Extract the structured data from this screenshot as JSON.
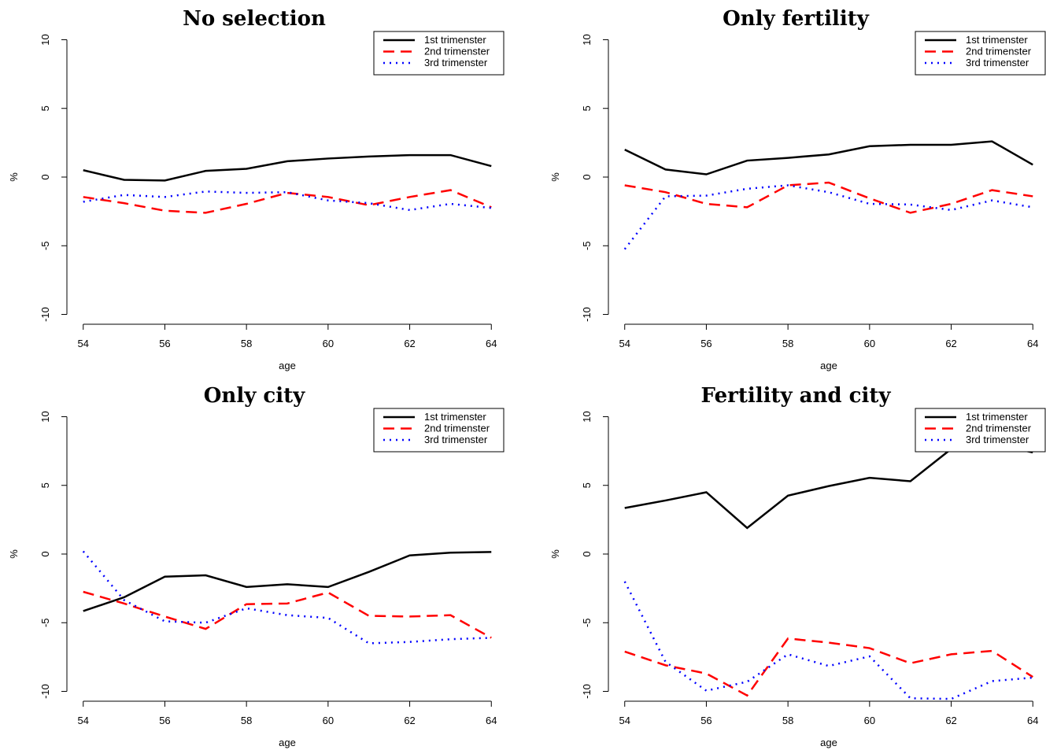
{
  "chart_data": [
    {
      "type": "line",
      "title": "No selection",
      "xlabel": "age",
      "ylabel": "%",
      "x": [
        54,
        55,
        56,
        57,
        58,
        59,
        60,
        61,
        62,
        63,
        64
      ],
      "xlim": [
        53.6,
        64.4
      ],
      "xticks": [
        54,
        56,
        58,
        60,
        62,
        64
      ],
      "ylim": [
        -10.6,
        10.6
      ],
      "yticks": [
        -10,
        -5,
        0,
        5,
        10
      ],
      "legend": "upper right",
      "series": [
        {
          "name": "1st trimenster",
          "color": "#000000",
          "linestyle": "solid",
          "values": [
            0.5,
            -0.2,
            -0.25,
            0.45,
            0.6,
            1.15,
            1.35,
            1.5,
            1.6,
            1.6,
            0.8
          ]
        },
        {
          "name": "2nd trimenster",
          "color": "#ff0000",
          "linestyle": "dashed",
          "values": [
            -1.45,
            -1.9,
            -2.45,
            -2.6,
            -1.95,
            -1.15,
            -1.45,
            -2.05,
            -1.45,
            -0.95,
            -2.2
          ]
        },
        {
          "name": "3rd trimenster",
          "color": "#0000ff",
          "linestyle": "dotted",
          "values": [
            -1.8,
            -1.3,
            -1.45,
            -1.05,
            -1.15,
            -1.1,
            -1.7,
            -1.9,
            -2.4,
            -1.95,
            -2.25
          ]
        }
      ]
    },
    {
      "type": "line",
      "title": "Only fertility",
      "xlabel": "age",
      "ylabel": "%",
      "x": [
        54,
        55,
        56,
        57,
        58,
        59,
        60,
        61,
        62,
        63,
        64
      ],
      "xlim": [
        53.6,
        64.4
      ],
      "xticks": [
        54,
        56,
        58,
        60,
        62,
        64
      ],
      "ylim": [
        -10.6,
        10.6
      ],
      "yticks": [
        -10,
        -5,
        0,
        5,
        10
      ],
      "legend": "upper right",
      "series": [
        {
          "name": "1st trimenster",
          "color": "#000000",
          "linestyle": "solid",
          "values": [
            2.0,
            0.55,
            0.2,
            1.2,
            1.4,
            1.65,
            2.25,
            2.35,
            2.35,
            2.6,
            0.9
          ]
        },
        {
          "name": "2nd trimenster",
          "color": "#ff0000",
          "linestyle": "dashed",
          "values": [
            -0.6,
            -1.1,
            -1.95,
            -2.2,
            -0.6,
            -0.4,
            -1.55,
            -2.6,
            -1.95,
            -0.95,
            -1.4
          ]
        },
        {
          "name": "3rd trimenster",
          "color": "#0000ff",
          "linestyle": "dotted",
          "values": [
            -5.25,
            -1.4,
            -1.35,
            -0.85,
            -0.6,
            -1.1,
            -1.95,
            -2.0,
            -2.4,
            -1.7,
            -2.2
          ]
        }
      ]
    },
    {
      "type": "line",
      "title": "Only city",
      "xlabel": "age",
      "ylabel": "%",
      "x": [
        54,
        55,
        56,
        57,
        58,
        59,
        60,
        61,
        62,
        63,
        64
      ],
      "xlim": [
        53.6,
        64.4
      ],
      "xticks": [
        54,
        56,
        58,
        60,
        62,
        64
      ],
      "ylim": [
        -10.6,
        10.6
      ],
      "yticks": [
        -10,
        -5,
        0,
        5,
        10
      ],
      "legend": "upper right",
      "series": [
        {
          "name": "1st trimenster",
          "color": "#000000",
          "linestyle": "solid",
          "values": [
            -4.15,
            -3.15,
            -1.65,
            -1.55,
            -2.4,
            -2.2,
            -2.4,
            -1.3,
            -0.1,
            0.1,
            0.15
          ]
        },
        {
          "name": "2nd trimenster",
          "color": "#ff0000",
          "linestyle": "dashed",
          "values": [
            -2.75,
            -3.6,
            -4.55,
            -5.45,
            -3.65,
            -3.6,
            -2.8,
            -4.5,
            -4.55,
            -4.45,
            -6.1
          ]
        },
        {
          "name": "3rd trimenster",
          "color": "#0000ff",
          "linestyle": "dotted",
          "values": [
            0.2,
            -3.35,
            -4.9,
            -5.0,
            -3.95,
            -4.45,
            -4.65,
            -6.5,
            -6.4,
            -6.2,
            -6.1
          ]
        }
      ]
    },
    {
      "type": "line",
      "title": "Fertility and city",
      "xlabel": "age",
      "ylabel": "%",
      "x": [
        54,
        55,
        56,
        57,
        58,
        59,
        60,
        61,
        62,
        63,
        64
      ],
      "xlim": [
        53.6,
        64.4
      ],
      "xticks": [
        54,
        56,
        58,
        60,
        62,
        64
      ],
      "ylim": [
        -10.6,
        10.6
      ],
      "yticks": [
        -10,
        -5,
        0,
        5,
        10
      ],
      "legend": "upper right",
      "series": [
        {
          "name": "1st trimenster",
          "color": "#000000",
          "linestyle": "solid",
          "values": [
            3.35,
            3.9,
            4.5,
            1.9,
            4.25,
            4.95,
            5.55,
            5.3,
            7.65,
            8.05,
            7.4
          ]
        },
        {
          "name": "2nd trimenster",
          "color": "#ff0000",
          "linestyle": "dashed",
          "values": [
            -7.1,
            -8.1,
            -8.7,
            -10.3,
            -6.15,
            -6.45,
            -6.85,
            -7.95,
            -7.3,
            -7.05,
            -8.95
          ]
        },
        {
          "name": "3rd trimenster",
          "color": "#0000ff",
          "linestyle": "dotted",
          "values": [
            -2.0,
            -7.85,
            -9.95,
            -9.3,
            -7.3,
            -8.15,
            -7.45,
            -10.5,
            -10.55,
            -9.25,
            -9.0
          ]
        }
      ]
    }
  ]
}
